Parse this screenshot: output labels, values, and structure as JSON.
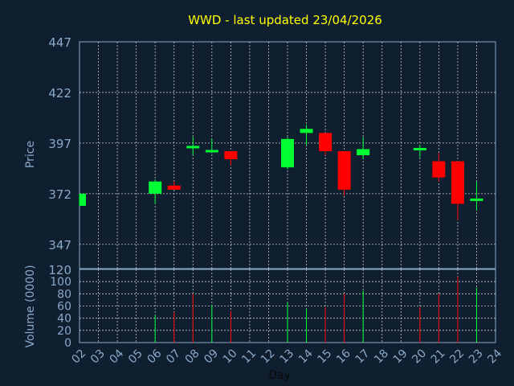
{
  "chart_data": {
    "type": "candlestick",
    "title": "WWD - last updated 23/04/2026",
    "ylabel": "Price",
    "volume_label": "Volume (0000)",
    "xlabel": "Day",
    "colors": {
      "up": "#00ff33",
      "down": "#ff0000",
      "background": "#0f1f30",
      "grid": "#c8c8c8",
      "axis_text": "#8aa8c8",
      "title": "#ffff00"
    },
    "price_ylim": [
      335,
      447
    ],
    "price_ticks": [
      447,
      422,
      397,
      372,
      347
    ],
    "volume_axis_bottom_label": "120",
    "volume_ylim": [
      0,
      120
    ],
    "volume_ticks": [
      0,
      20,
      40,
      60,
      80,
      100
    ],
    "x_ticks": [
      "02",
      "03",
      "04",
      "05",
      "06",
      "07",
      "08",
      "09",
      "10",
      "11",
      "12",
      "13",
      "14",
      "15",
      "16",
      "17",
      "18",
      "19",
      "20",
      "21",
      "22",
      "23",
      "24"
    ],
    "grid": true,
    "candles": [
      {
        "day": "02",
        "open": 366,
        "high": 372,
        "low": 366,
        "close": 372
      },
      {
        "day": "06",
        "open": 372,
        "high": 379,
        "low": 367,
        "close": 378
      },
      {
        "day": "07",
        "open": 376,
        "high": 378,
        "low": 374,
        "close": 374
      },
      {
        "day": "08",
        "open": 395,
        "high": 400,
        "low": 391,
        "close": 395
      },
      {
        "day": "09",
        "open": 392,
        "high": 399,
        "low": 392,
        "close": 393
      },
      {
        "day": "10",
        "open": 393,
        "high": 393,
        "low": 386,
        "close": 389
      },
      {
        "day": "13",
        "open": 385,
        "high": 400,
        "low": 384,
        "close": 399
      },
      {
        "day": "14",
        "open": 402,
        "high": 406,
        "low": 396,
        "close": 404
      },
      {
        "day": "15",
        "open": 402,
        "high": 402,
        "low": 391,
        "close": 393
      },
      {
        "day": "16",
        "open": 393,
        "high": 393,
        "low": 371,
        "close": 374
      },
      {
        "day": "17",
        "open": 391,
        "high": 400,
        "low": 389,
        "close": 394
      },
      {
        "day": "20",
        "open": 394,
        "high": 396,
        "low": 390,
        "close": 394
      },
      {
        "day": "21",
        "open": 388,
        "high": 392,
        "low": 378,
        "close": 380
      },
      {
        "day": "22",
        "open": 388,
        "high": 388,
        "low": 359,
        "close": 367
      },
      {
        "day": "23",
        "open": 368,
        "high": 378,
        "low": 364,
        "close": 369
      }
    ],
    "volumes": [
      {
        "day": "06",
        "value": 45,
        "direction": "up"
      },
      {
        "day": "07",
        "value": 50,
        "direction": "down"
      },
      {
        "day": "08",
        "value": 80,
        "direction": "down"
      },
      {
        "day": "09",
        "value": 62,
        "direction": "up"
      },
      {
        "day": "10",
        "value": 52,
        "direction": "down"
      },
      {
        "day": "13",
        "value": 66,
        "direction": "up"
      },
      {
        "day": "14",
        "value": 55,
        "direction": "up"
      },
      {
        "day": "15",
        "value": 58,
        "direction": "down"
      },
      {
        "day": "16",
        "value": 80,
        "direction": "down"
      },
      {
        "day": "17",
        "value": 85,
        "direction": "up"
      },
      {
        "day": "20",
        "value": 58,
        "direction": "down"
      },
      {
        "day": "21",
        "value": 80,
        "direction": "down"
      },
      {
        "day": "22",
        "value": 108,
        "direction": "down"
      },
      {
        "day": "23",
        "value": 90,
        "direction": "up"
      }
    ]
  }
}
